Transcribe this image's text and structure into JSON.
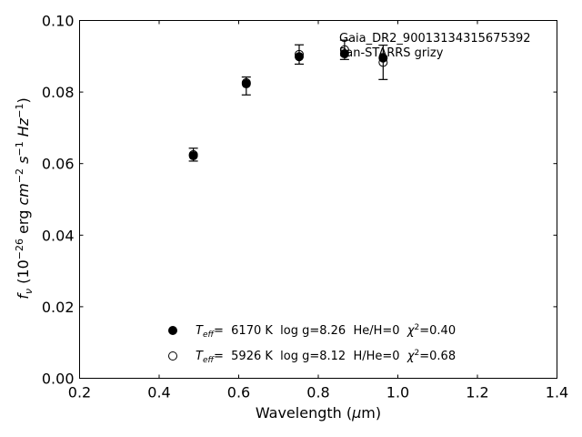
{
  "chart_data": {
    "type": "scatter",
    "xlabel": "Wavelength (μm)",
    "ylabel": "f_ν (10^-26 erg cm^-2 s^-1 Hz^-1)",
    "xlim": [
      0.2,
      1.4
    ],
    "ylim": [
      0.0,
      0.1
    ],
    "x_ticks": [
      "0.2",
      "0.4",
      "0.6",
      "0.8",
      "1.0",
      "1.2",
      "1.4"
    ],
    "y_ticks": [
      "0.00",
      "0.02",
      "0.04",
      "0.06",
      "0.08",
      "0.10"
    ],
    "grid": false,
    "annotations": [
      "Gaia_DR2_90013134315675392",
      "Pan-STARRS grizy"
    ],
    "observed": {
      "x": [
        0.486,
        0.619,
        0.752,
        0.866,
        0.963
      ],
      "y": [
        0.0625,
        0.0817,
        0.0905,
        0.0918,
        0.0883
      ],
      "yerr": [
        0.0018,
        0.0025,
        0.0027,
        0.0027,
        0.0048
      ]
    },
    "series": [
      {
        "marker": "filled",
        "x": [
          0.486,
          0.619,
          0.752,
          0.866,
          0.963
        ],
        "y": [
          0.0622,
          0.0823,
          0.0899,
          0.0907,
          0.0895
        ],
        "legend": {
          "teff_label": "T",
          "teff_sub": "eff",
          "text": "=  6170 K  log g=8.26  He/H=0  ",
          "chi": "χ",
          "chi_sup": "2",
          "chi_val": "=0.40"
        }
      },
      {
        "marker": "open",
        "x": [
          0.486,
          0.619,
          0.752,
          0.866,
          0.963
        ],
        "y": [
          0.0625,
          0.0826,
          0.0905,
          0.0918,
          0.0883
        ],
        "legend": {
          "teff_label": "T",
          "teff_sub": "eff",
          "text": "=  5926 K  log g=8.12  H/He=0  ",
          "chi": "χ",
          "chi_sup": "2",
          "chi_val": "=0.68"
        }
      }
    ],
    "legend_position": "lower-center"
  }
}
